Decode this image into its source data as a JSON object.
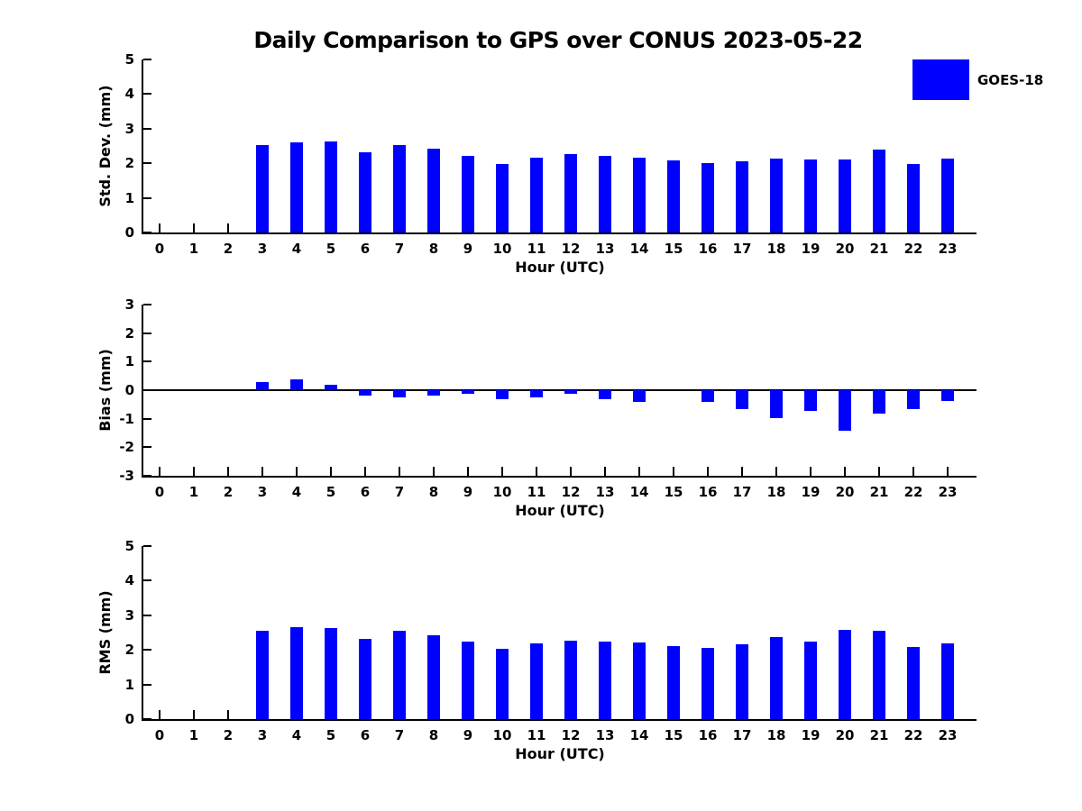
{
  "title": "Daily Comparison to GPS over CONUS 2023-05-22",
  "legend": {
    "label": "GOES-18",
    "color": "#0000ff",
    "position": "top-right"
  },
  "colors": {
    "bar": "#0000ff",
    "axis": "#000000",
    "background": "#ffffff"
  },
  "chart_data": [
    {
      "type": "bar",
      "series_name": "GOES-18",
      "ylabel": "Std. Dev. (mm)",
      "xlabel": "Hour (UTC)",
      "categories": [
        "0",
        "1",
        "2",
        "3",
        "4",
        "5",
        "6",
        "7",
        "8",
        "9",
        "10",
        "11",
        "12",
        "13",
        "14",
        "15",
        "16",
        "17",
        "18",
        "19",
        "20",
        "21",
        "22",
        "23"
      ],
      "values": [
        null,
        null,
        null,
        2.53,
        2.61,
        2.64,
        2.33,
        2.53,
        2.42,
        2.22,
        1.98,
        2.17,
        2.26,
        2.22,
        2.17,
        2.09,
        2.01,
        2.06,
        2.13,
        2.11,
        2.11,
        2.39,
        1.98,
        2.14
      ],
      "ylim": [
        0,
        5
      ],
      "ytick_step": 1,
      "grid": false,
      "zero_line": false
    },
    {
      "type": "bar",
      "series_name": "GOES-18",
      "ylabel": "Bias (mm)",
      "xlabel": "Hour (UTC)",
      "categories": [
        "0",
        "1",
        "2",
        "3",
        "4",
        "5",
        "6",
        "7",
        "8",
        "9",
        "10",
        "11",
        "12",
        "13",
        "14",
        "15",
        "16",
        "17",
        "18",
        "19",
        "20",
        "21",
        "22",
        "23"
      ],
      "values": [
        null,
        null,
        null,
        0.29,
        0.38,
        0.18,
        -0.19,
        -0.24,
        -0.19,
        -0.14,
        -0.3,
        -0.26,
        -0.13,
        -0.32,
        -0.42,
        0.0,
        -0.42,
        -0.66,
        -0.98,
        -0.73,
        -1.42,
        -0.82,
        -0.66,
        -0.38
      ],
      "ylim": [
        -3,
        3
      ],
      "ytick_step": 1,
      "grid": false,
      "zero_line": true
    },
    {
      "type": "bar",
      "series_name": "GOES-18",
      "ylabel": "RMS (mm)",
      "xlabel": "Hour (UTC)",
      "categories": [
        "0",
        "1",
        "2",
        "3",
        "4",
        "5",
        "6",
        "7",
        "8",
        "9",
        "10",
        "11",
        "12",
        "13",
        "14",
        "15",
        "16",
        "17",
        "18",
        "19",
        "20",
        "21",
        "22",
        "23"
      ],
      "values": [
        null,
        null,
        null,
        2.55,
        2.66,
        2.63,
        2.33,
        2.55,
        2.42,
        2.25,
        2.02,
        2.19,
        2.27,
        2.25,
        2.22,
        2.12,
        2.06,
        2.16,
        2.38,
        2.25,
        2.57,
        2.55,
        2.09,
        2.19
      ],
      "ylim": [
        0,
        5
      ],
      "ytick_step": 1,
      "grid": false,
      "zero_line": false
    }
  ]
}
